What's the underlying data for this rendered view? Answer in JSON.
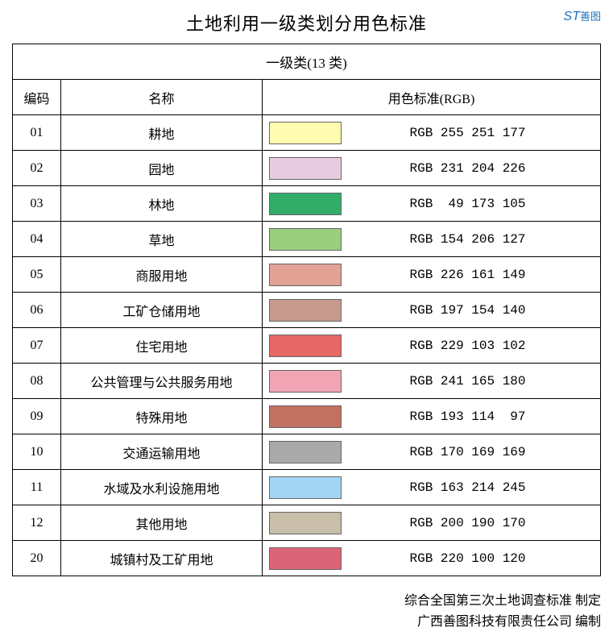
{
  "title": "土地利用一级类划分用色标准",
  "logo_text": "ST",
  "logo_sub": "善图",
  "subtitle": "一级类(13 类)",
  "columns": {
    "code": "编码",
    "name": "名称",
    "color": "用色标准(RGB)"
  },
  "rows": [
    {
      "code": "01",
      "name": "耕地",
      "r": 255,
      "g": 251,
      "b": 177,
      "hex": "#fffbb1",
      "rgb_text": "RGB 255 251 177"
    },
    {
      "code": "02",
      "name": "园地",
      "r": 231,
      "g": 204,
      "b": 226,
      "hex": "#e7cce2",
      "rgb_text": "RGB 231 204 226"
    },
    {
      "code": "03",
      "name": "林地",
      "r": 49,
      "g": 173,
      "b": 105,
      "hex": "#31ad69",
      "rgb_text": "RGB  49 173 105"
    },
    {
      "code": "04",
      "name": "草地",
      "r": 154,
      "g": 206,
      "b": 127,
      "hex": "#9ace7f",
      "rgb_text": "RGB 154 206 127"
    },
    {
      "code": "05",
      "name": "商服用地",
      "r": 226,
      "g": 161,
      "b": 149,
      "hex": "#e2a195",
      "rgb_text": "RGB 226 161 149"
    },
    {
      "code": "06",
      "name": "工矿仓储用地",
      "r": 197,
      "g": 154,
      "b": 140,
      "hex": "#c59a8c",
      "rgb_text": "RGB 197 154 140"
    },
    {
      "code": "07",
      "name": "住宅用地",
      "r": 229,
      "g": 103,
      "b": 102,
      "hex": "#e56766",
      "rgb_text": "RGB 229 103 102"
    },
    {
      "code": "08",
      "name": "公共管理与公共服务用地",
      "r": 241,
      "g": 165,
      "b": 180,
      "hex": "#f1a5b4",
      "rgb_text": "RGB 241 165 180"
    },
    {
      "code": "09",
      "name": "特殊用地",
      "r": 193,
      "g": 114,
      "b": 97,
      "hex": "#c17261",
      "rgb_text": "RGB 193 114  97"
    },
    {
      "code": "10",
      "name": "交通运输用地",
      "r": 170,
      "g": 169,
      "b": 169,
      "hex": "#aaa9a9",
      "rgb_text": "RGB 170 169 169"
    },
    {
      "code": "11",
      "name": "水域及水利设施用地",
      "r": 163,
      "g": 214,
      "b": 245,
      "hex": "#a3d6f5",
      "rgb_text": "RGB 163 214 245"
    },
    {
      "code": "12",
      "name": "其他用地",
      "r": 200,
      "g": 190,
      "b": 170,
      "hex": "#c8beaa",
      "rgb_text": "RGB 200 190 170"
    },
    {
      "code": "20",
      "name": "城镇村及工矿用地",
      "r": 220,
      "g": 100,
      "b": 120,
      "hex": "#dc6478",
      "rgb_text": "RGB 220 100 120"
    }
  ],
  "footer_line1": "综合全国第三次土地调查标准 制定",
  "footer_line2": "广西善图科技有限责任公司 编制"
}
